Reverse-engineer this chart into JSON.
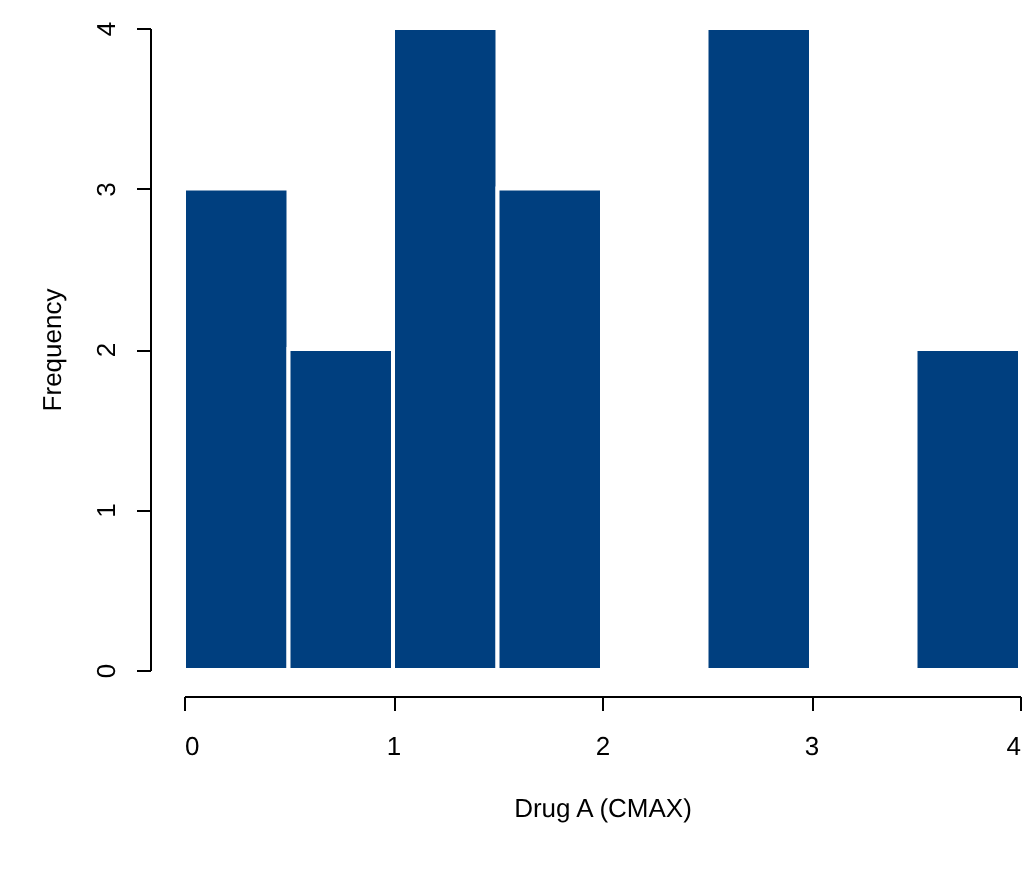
{
  "chart_data": {
    "type": "histogram",
    "xlabel": "Drug A (CMAX)",
    "ylabel": "Frequency",
    "bins": [
      0,
      0.5,
      1,
      1.5,
      2,
      2.5,
      3,
      3.5,
      4
    ],
    "values": [
      3,
      2,
      4,
      3,
      0,
      4,
      0,
      2
    ],
    "color": "#003f7f",
    "xlim": [
      0,
      4
    ],
    "xticks": [
      0,
      1,
      2,
      3,
      4
    ],
    "ylim": [
      0,
      4
    ],
    "yticks": [
      0,
      1,
      2,
      3,
      4
    ],
    "grid": false
  }
}
